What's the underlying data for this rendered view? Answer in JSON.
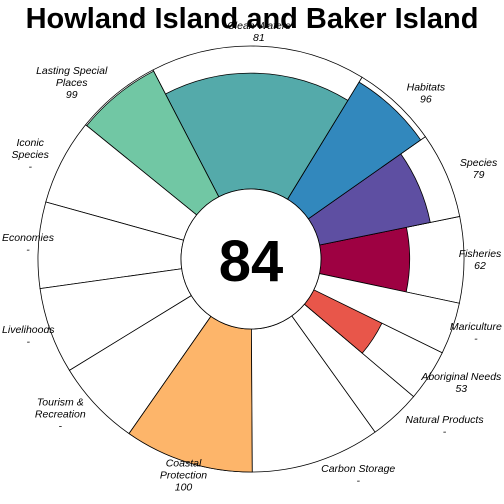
{
  "chart_data": {
    "type": "flower",
    "title": "Howland Island and Baker Island",
    "center_score": "84",
    "scale_max": 100,
    "petals": [
      {
        "id": "fisheries",
        "label_lines": [
          "Fisheries"
        ],
        "value_text": "62",
        "value": 62,
        "weight": 1,
        "color": "#9E0142"
      },
      {
        "id": "species",
        "label_lines": [
          "Species"
        ],
        "value_text": "79",
        "value": 79,
        "weight": 1,
        "color": "#5E4FA2"
      },
      {
        "id": "habitats",
        "label_lines": [
          "Habitats"
        ],
        "value_text": "96",
        "value": 96,
        "weight": 1,
        "color": "#3288BD"
      },
      {
        "id": "clean-waters",
        "label_lines": [
          "Clean Waters"
        ],
        "value_text": "81",
        "value": 81,
        "weight": 2.5,
        "color": "#54AAAA"
      },
      {
        "id": "lasting-special-places",
        "label_lines": [
          "Lasting Special",
          "Places"
        ],
        "value_text": "99",
        "value": 99,
        "weight": 1,
        "color": "#71C7A4"
      },
      {
        "id": "iconic-species",
        "label_lines": [
          "Iconic",
          "Species"
        ],
        "value_text": "-",
        "value": null,
        "weight": 1,
        "color": "#FFFFFF"
      },
      {
        "id": "economies",
        "label_lines": [
          "Economies"
        ],
        "value_text": "-",
        "value": null,
        "weight": 1,
        "color": "#FFFFFF"
      },
      {
        "id": "livelihoods",
        "label_lines": [
          "Livelihoods"
        ],
        "value_text": "-",
        "value": null,
        "weight": 1,
        "color": "#FFFFFF"
      },
      {
        "id": "tourism-recreation",
        "label_lines": [
          "Tourism &",
          "Recreation"
        ],
        "value_text": "-",
        "value": null,
        "weight": 1,
        "color": "#FFFFFF"
      },
      {
        "id": "coastal-protection",
        "label_lines": [
          "Coastal",
          "Protection"
        ],
        "value_text": "100",
        "value": 100,
        "weight": 1.5,
        "color": "#FDB56A"
      },
      {
        "id": "carbon-storage",
        "label_lines": [
          "Carbon Storage"
        ],
        "value_text": "-",
        "value": null,
        "weight": 1.5,
        "color": "#FFFFFF"
      },
      {
        "id": "natural-products",
        "label_lines": [
          "Natural Products"
        ],
        "value_text": "-",
        "value": null,
        "weight": 0.6,
        "color": "#FFFFFF"
      },
      {
        "id": "aboriginal-needs",
        "label_lines": [
          "Aboriginal Needs"
        ],
        "value_text": "53",
        "value": 53,
        "weight": 0.6,
        "color": "#E8564A"
      },
      {
        "id": "mariculture",
        "label_lines": [
          "Mariculture"
        ],
        "value_text": "-",
        "value": null,
        "weight": 0.6,
        "color": "#FFFFFF"
      }
    ]
  }
}
